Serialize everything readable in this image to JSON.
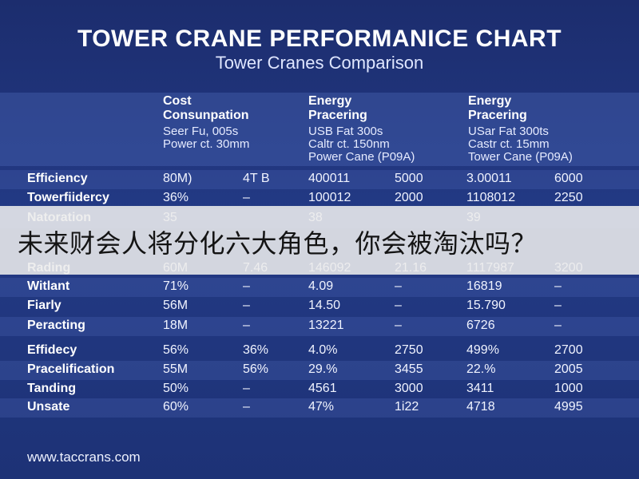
{
  "title": "TOWER CRANE PERFORMANICE CHART",
  "subtitle": "Tower Cranes Comparison",
  "overlay_caption": "未来财会人将分化六大角色，你会被淘汰吗？",
  "footer": "www.taccrans.com",
  "colors": {
    "background": "#1f3479",
    "overlay": "#ececec",
    "overlay_text": "#141414"
  },
  "chart_data": {
    "type": "table",
    "title": "TOWER CRANE PERFORMANICE CHART",
    "subtitle": "Tower Cranes Comparison",
    "column_groups": [
      {
        "heading": [
          "Cost",
          "Consunpation"
        ],
        "sub": [
          "Seer Fu, 005s",
          "Power ct. 30mm"
        ]
      },
      {
        "heading": [
          "Energy",
          "Pracering"
        ],
        "sub": [
          "USB Fat 300s",
          "Caltr ct. 150nm",
          "Power Cane (P09A)"
        ]
      },
      {
        "heading": [
          "Energy",
          "Pracering"
        ],
        "sub": [
          "USar Fat 300ts",
          "Castr ct. 15mm",
          "Tower Cane (P09A)"
        ]
      }
    ],
    "rows": [
      {
        "label": "Efficiency",
        "cells": [
          "80M)",
          "4T B",
          "400011",
          "5000",
          "3.00011",
          "6000"
        ]
      },
      {
        "label": "Towerfiidercy",
        "cells": [
          "36%",
          "–",
          "100012",
          "2000",
          "1108012",
          "2250"
        ]
      },
      {
        "label": "Natoration",
        "cells": [
          "35",
          "",
          "38",
          "",
          "39",
          ""
        ]
      },
      {
        "label": "Rading",
        "cells": [
          "60M",
          "7.46",
          "146092",
          "21.16",
          "1117987",
          "3200"
        ]
      },
      {
        "label": "Witlant",
        "cells": [
          "71%",
          "–",
          "4.09",
          "–",
          "16819",
          "–"
        ]
      },
      {
        "label": "Fiarly",
        "cells": [
          "56M",
          "–",
          "14.50",
          "–",
          "15.790",
          "–"
        ]
      },
      {
        "label": "Peracting",
        "cells": [
          "18M",
          "–",
          "13221",
          "–",
          "6726",
          "–"
        ]
      },
      {
        "label": "Effidecy",
        "cells": [
          "56%",
          "36%",
          "4.0%",
          "2750",
          "499%",
          "2700"
        ]
      },
      {
        "label": "Pracelification",
        "cells": [
          "55M",
          "56%",
          "29.%",
          "3455",
          "22.%",
          "2005"
        ]
      },
      {
        "label": "Tanding",
        "cells": [
          "50%",
          "–",
          "4561",
          "3000",
          "3411",
          "1000"
        ]
      },
      {
        "label": "Unsate",
        "cells": [
          "60%",
          "–",
          "47%",
          "1i22",
          "4718",
          "4995"
        ]
      }
    ]
  }
}
